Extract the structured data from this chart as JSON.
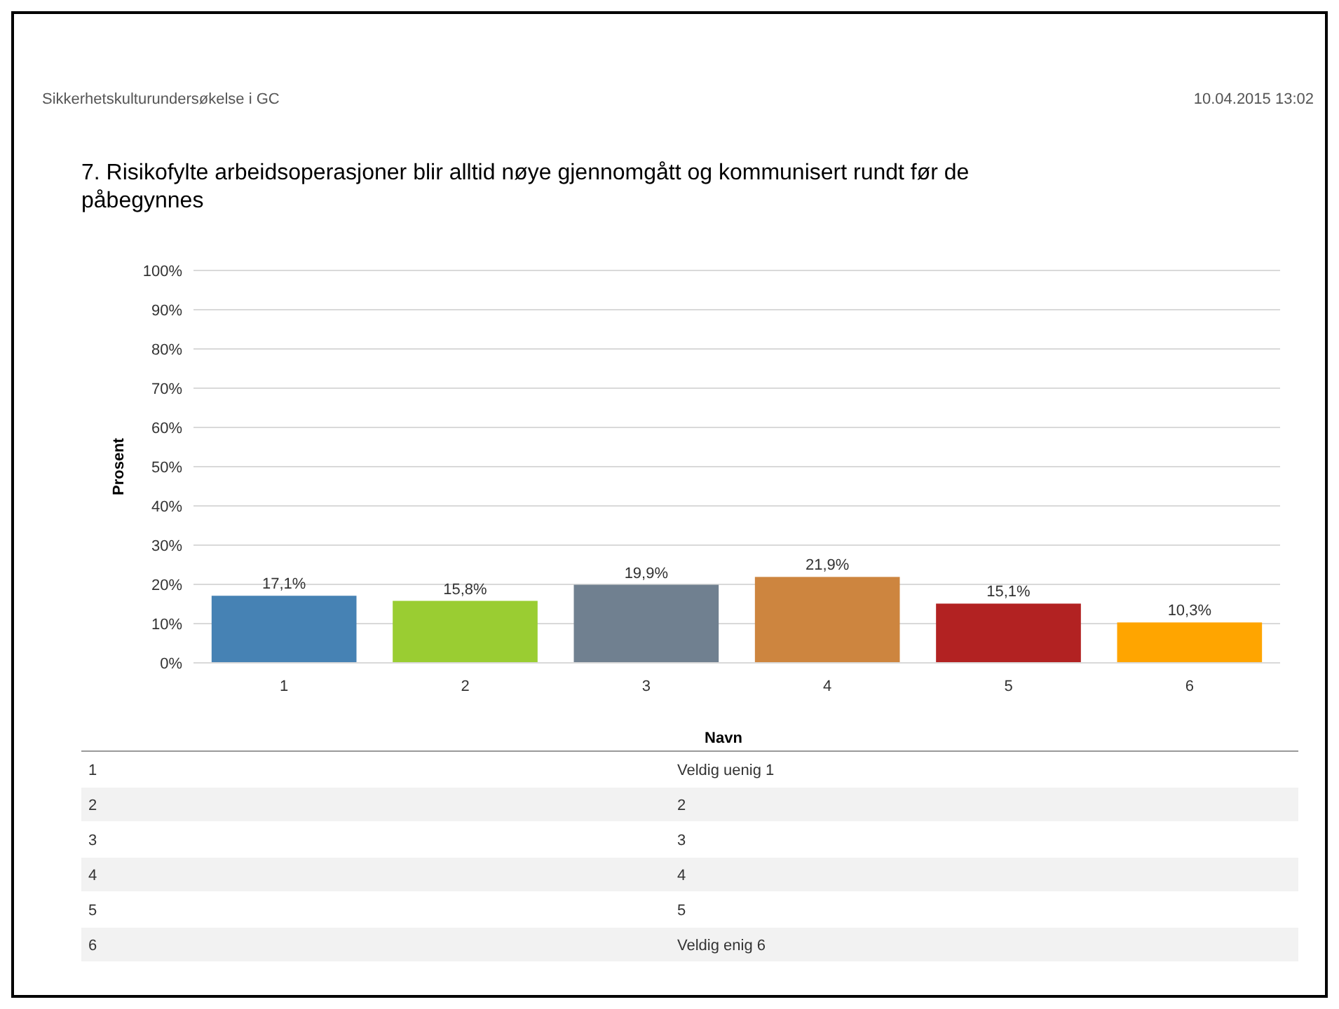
{
  "chart_data": {
    "type": "bar",
    "title": "7. Risikofylte arbeidsoperasjoner blir alltid nøye gjennomgått og kommunisert rundt før de påbegynnes",
    "subtitle": "Sikkerhetskulturundersøkelse i GC",
    "ylabel": "Prosent",
    "categories": [
      "1",
      "2",
      "3",
      "4",
      "5",
      "6"
    ],
    "values": [
      17.1,
      15.8,
      19.9,
      21.9,
      15.1,
      10.3
    ],
    "colors": [
      "#4682b4",
      "#9acd32",
      "#708090",
      "#cd853f",
      "#b22222",
      "#ffa500"
    ],
    "value_labels": [
      "17,1%",
      "15,8%",
      "19,9%",
      "21,9%",
      "15,1%",
      "10,3%"
    ],
    "ylim": [
      0,
      100
    ],
    "yticks": [
      {
        "value": 0,
        "label": "0%"
      },
      {
        "value": 10,
        "label": "10%"
      },
      {
        "value": 20,
        "label": "20%"
      },
      {
        "value": 30,
        "label": "30%"
      },
      {
        "value": 40,
        "label": "40%"
      },
      {
        "value": 50,
        "label": "50%"
      },
      {
        "value": 60,
        "label": "60%"
      },
      {
        "value": 70,
        "label": "70%"
      },
      {
        "value": 80,
        "label": "80%"
      },
      {
        "value": 90,
        "label": "90%"
      },
      {
        "value": 100,
        "label": "100%"
      }
    ],
    "grid": "y",
    "annotations": [
      "10.04.2015 13:02",
      "Navn",
      "1",
      "Veldig uenig 1",
      "2",
      "2",
      "3",
      "3",
      "4",
      "4",
      "5",
      "5",
      "6",
      "Veldig enig 6"
    ]
  }
}
